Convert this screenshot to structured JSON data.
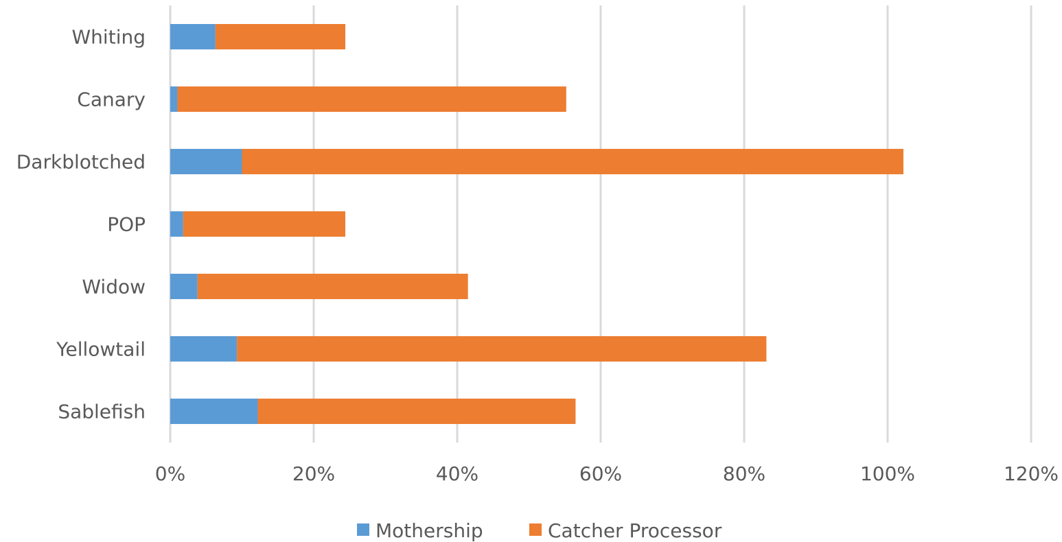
{
  "chart_data": {
    "type": "bar",
    "orientation": "horizontal",
    "stacked": true,
    "title": "",
    "xlabel": "",
    "ylabel": "",
    "categories": [
      "Whiting",
      "Canary",
      "Darkblotched",
      "POP",
      "Widow",
      "Yellowtail",
      "Sablefish"
    ],
    "series": [
      {
        "name": "Mothership",
        "color": "#5b9bd5",
        "values": [
          6.3,
          1.0,
          10.0,
          1.8,
          3.8,
          9.3,
          12.2
        ]
      },
      {
        "name": "Catcher Processor",
        "color": "#ed7d31",
        "values": [
          18.1,
          54.2,
          92.2,
          22.6,
          37.7,
          73.8,
          44.3
        ]
      }
    ],
    "xlim": [
      0,
      120
    ],
    "xticks": [
      "0%",
      "20%",
      "40%",
      "60%",
      "80%",
      "100%",
      "120%"
    ],
    "grid": true,
    "legend_position": "bottom"
  }
}
